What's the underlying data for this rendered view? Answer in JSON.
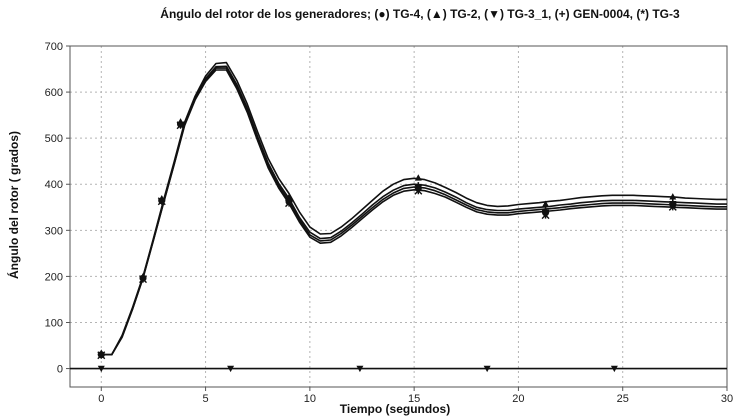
{
  "chart_data": {
    "type": "line",
    "title": "Ángulo del rotor de los generadores; (●) TG-4,  (▲) TG-2, (▼) TG-3_1, (+) GEN-0004, (*) TG-3",
    "xlabel": "Tiempo (segundos)",
    "ylabel": "Ángulo del rotor ( grados)",
    "xlim": [
      -1.5,
      30
    ],
    "ylim": [
      -40,
      700
    ],
    "xticks": [
      0,
      5,
      10,
      15,
      20,
      25,
      30
    ],
    "yticks": [
      0,
      100,
      200,
      300,
      400,
      500,
      600,
      700
    ],
    "grid": true,
    "legend": "none",
    "colors": {
      "lines": "#111111",
      "grid": "#b4b4b4",
      "frame": "#555555"
    },
    "series": [
      {
        "name": "TG-2",
        "marker": "triangle-up",
        "x": [
          0,
          0.5,
          1,
          1.5,
          2,
          2.5,
          3,
          3.5,
          4,
          4.5,
          5,
          5.5,
          6,
          6.5,
          7,
          7.5,
          8,
          8.5,
          9,
          9.5,
          10,
          10.5,
          11,
          11.5,
          12,
          12.5,
          13,
          13.5,
          14,
          14.5,
          15,
          15.5,
          16,
          16.5,
          17,
          17.5,
          18,
          18.5,
          19,
          19.5,
          20,
          20.5,
          21,
          21.5,
          22,
          22.5,
          23,
          23.5,
          24,
          24.5,
          25,
          25.5,
          26,
          26.5,
          27,
          27.5,
          28,
          28.5,
          29,
          29.5,
          30
        ],
        "y": [
          30,
          30,
          72,
          133,
          200,
          282,
          368,
          450,
          535,
          591,
          635,
          662,
          664,
          625,
          574,
          513,
          456,
          413,
          380,
          340,
          307,
          292,
          293,
          307,
          325,
          345,
          365,
          385,
          400,
          410,
          413,
          410,
          403,
          393,
          382,
          370,
          360,
          354,
          352,
          353,
          356,
          358,
          360,
          363,
          365,
          368,
          371,
          373,
          375,
          376,
          376,
          376,
          375,
          374,
          373,
          372,
          370,
          369,
          368,
          367,
          367
        ],
        "marker_x": [
          0,
          2,
          2.9,
          3.8,
          9,
          15.2,
          21.3,
          27.4
        ],
        "marker_y": [
          34,
          200,
          369,
          536,
          372,
          414,
          357,
          373
        ]
      },
      {
        "name": "GEN-0004",
        "marker": "plus",
        "x": [
          0,
          0.5,
          1,
          1.5,
          2,
          2.5,
          3,
          3.5,
          4,
          4.5,
          5,
          5.5,
          6,
          6.5,
          7,
          7.5,
          8,
          8.5,
          9,
          9.5,
          10,
          10.5,
          11,
          11.5,
          12,
          12.5,
          13,
          13.5,
          14,
          14.5,
          15,
          15.5,
          16,
          16.5,
          17,
          17.5,
          18,
          18.5,
          19,
          19.5,
          20,
          20.5,
          21,
          21.5,
          22,
          22.5,
          23,
          23.5,
          24,
          24.5,
          25,
          25.5,
          26,
          26.5,
          27,
          27.5,
          28,
          28.5,
          29,
          29.5,
          30
        ],
        "y": [
          30,
          30,
          70,
          131,
          198,
          280,
          365,
          447,
          532,
          587,
          629,
          655,
          656,
          616,
          565,
          503,
          446,
          402,
          369,
          328,
          296,
          282,
          284,
          298,
          316,
          335,
          355,
          373,
          387,
          397,
          400,
          398,
          392,
          383,
          372,
          360,
          350,
          345,
          343,
          343,
          346,
          348,
          350,
          352,
          355,
          357,
          360,
          362,
          364,
          365,
          365,
          365,
          364,
          363,
          362,
          361,
          360,
          359,
          358,
          357,
          357
        ],
        "marker_x": [
          0,
          2,
          2.9,
          3.8,
          9,
          15.2,
          21.3,
          27.4
        ],
        "marker_y": [
          31,
          197,
          366,
          532,
          365,
          397,
          343,
          362
        ]
      },
      {
        "name": "TG-3",
        "marker": "star",
        "x": [
          0,
          0.5,
          1,
          1.5,
          2,
          2.5,
          3,
          3.5,
          4,
          4.5,
          5,
          5.5,
          6,
          6.5,
          7,
          7.5,
          8,
          8.5,
          9,
          9.5,
          10,
          10.5,
          11,
          11.5,
          12,
          12.5,
          13,
          13.5,
          14,
          14.5,
          15,
          15.5,
          16,
          16.5,
          17,
          17.5,
          18,
          18.5,
          19,
          19.5,
          20,
          20.5,
          21,
          21.5,
          22,
          22.5,
          23,
          23.5,
          24,
          24.5,
          25,
          25.5,
          26,
          26.5,
          27,
          27.5,
          28,
          28.5,
          29,
          29.5,
          30
        ],
        "y": [
          30,
          30,
          68,
          129,
          196,
          278,
          362,
          444,
          528,
          583,
          623,
          648,
          648,
          607,
          556,
          494,
          436,
          392,
          358,
          318,
          285,
          272,
          274,
          288,
          306,
          325,
          344,
          362,
          376,
          385,
          388,
          386,
          380,
          372,
          361,
          350,
          340,
          335,
          333,
          333,
          336,
          338,
          340,
          342,
          344,
          347,
          349,
          351,
          353,
          354,
          354,
          354,
          353,
          352,
          351,
          350,
          349,
          348,
          347,
          346,
          346
        ],
        "marker_x": [
          0,
          2,
          2.9,
          3.8,
          9,
          15.2,
          21.3,
          27.4
        ],
        "marker_y": [
          29,
          194,
          363,
          528,
          359,
          386,
          333,
          351
        ]
      },
      {
        "name": "TG-4",
        "marker": "circle",
        "x": [
          0,
          0.5,
          1,
          1.5,
          2,
          2.5,
          3,
          3.5,
          4,
          4.5,
          5,
          5.5,
          6,
          6.5,
          7,
          7.5,
          8,
          8.5,
          9,
          9.5,
          10,
          10.5,
          11,
          11.5,
          12,
          12.5,
          13,
          13.5,
          14,
          14.5,
          15,
          15.5,
          16,
          16.5,
          17,
          17.5,
          18,
          18.5,
          19,
          19.5,
          20,
          20.5,
          21,
          21.5,
          22,
          22.5,
          23,
          23.5,
          24,
          24.5,
          25,
          25.5,
          26,
          26.5,
          27,
          27.5,
          28,
          28.5,
          29,
          29.5,
          30
        ],
        "y": [
          30,
          30,
          69,
          130,
          197,
          279,
          363,
          445,
          530,
          585,
          626,
          652,
          652,
          612,
          560,
          498,
          441,
          397,
          363,
          323,
          290,
          277,
          279,
          293,
          311,
          330,
          349,
          367,
          381,
          391,
          394,
          392,
          386,
          377,
          366,
          355,
          345,
          340,
          338,
          338,
          341,
          343,
          345,
          347,
          349,
          352,
          354,
          356,
          358,
          359,
          359,
          359,
          358,
          357,
          356,
          355,
          354,
          353,
          352,
          351,
          351
        ],
        "marker_x": [
          0,
          2,
          2.9,
          3.8,
          9,
          15.2,
          21.3,
          27.4
        ],
        "marker_y": [
          30,
          196,
          364,
          530,
          362,
          391,
          338,
          356
        ]
      },
      {
        "name": "TG-3_1",
        "marker": "triangle-down",
        "x": [
          -1.5,
          30
        ],
        "y": [
          0,
          0
        ],
        "marker_x": [
          0,
          6.2,
          12.4,
          18.5,
          24.6
        ],
        "marker_y": [
          0,
          0,
          0,
          0,
          0
        ]
      }
    ]
  }
}
